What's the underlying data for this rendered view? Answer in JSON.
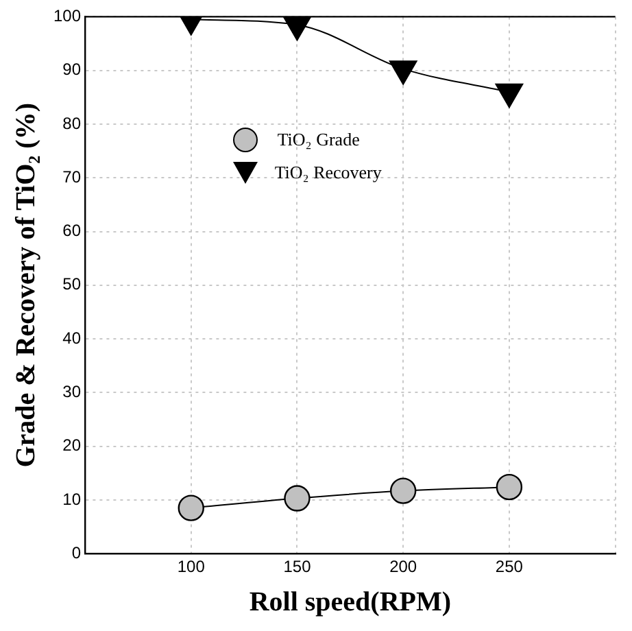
{
  "chart_data": {
    "type": "line",
    "xlabel": "Roll speed(RPM)",
    "ylabel": "Grade & Recovery of TiO₂ (%)",
    "x": [
      100,
      150,
      200,
      250
    ],
    "series": [
      {
        "name": "TiO₂ Grade",
        "color": "#c0c0c0",
        "values": [
          8.5,
          10.3,
          11.7,
          12.4
        ],
        "marker": "circle"
      },
      {
        "name": "TiO₂ Recovery",
        "color": "#000000",
        "values": [
          99.5,
          98.5,
          90.3,
          86.0
        ],
        "marker": "triangle"
      }
    ],
    "xlim": [
      50,
      300
    ],
    "xticks": [
      {
        "value": 50,
        "label": null
      },
      100,
      150,
      200,
      250,
      {
        "value": 300,
        "label": null
      }
    ],
    "ylim": [
      0,
      100
    ],
    "yticks": [
      0,
      10,
      20,
      30,
      40,
      50,
      60,
      70,
      80,
      90,
      100
    ],
    "grid": true,
    "legend": "top",
    "line_style": "solid"
  }
}
